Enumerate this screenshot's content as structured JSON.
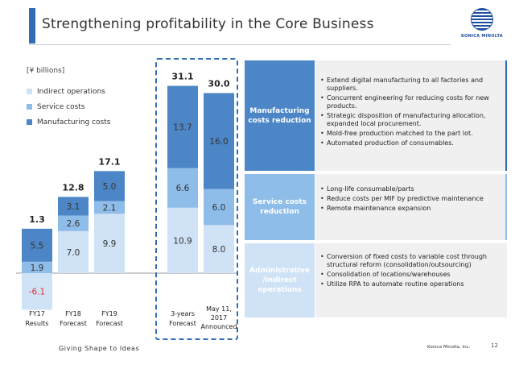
{
  "header": {
    "title": "Strengthening profitability in the Core Business",
    "logo_text": "KONICA MINOLTA"
  },
  "legend": {
    "unit": "[¥ billions]",
    "items": [
      {
        "label": "Indirect operations",
        "color": "#cfe2f6"
      },
      {
        "label": "Service costs",
        "color": "#8fbde9"
      },
      {
        "label": "Manufacturing costs",
        "color": "#4c86c6"
      }
    ]
  },
  "colors": {
    "accent": "#2f6eb5",
    "manufacturing": "#4c86c6",
    "service": "#8fbde9",
    "indirect": "#cfe2f6",
    "negative_text": "#e03030"
  },
  "chart_data": {
    "type": "bar",
    "stacked": true,
    "categories": [
      "FY17 Results",
      "FY18 Forecast",
      "FY19 Forecast",
      "3-years Forecast",
      "May 11, 2017 Announced"
    ],
    "series": [
      {
        "name": "Indirect operations",
        "values": [
          -6.1,
          7.0,
          9.9,
          10.9,
          8.0
        ]
      },
      {
        "name": "Service costs",
        "values": [
          1.9,
          2.6,
          2.1,
          6.6,
          6.0
        ]
      },
      {
        "name": "Manufacturing costs",
        "values": [
          5.5,
          3.1,
          5.0,
          13.7,
          16.0
        ]
      }
    ],
    "totals": [
      "1.3",
      "12.8",
      "17.1",
      "31.1",
      "30.0"
    ],
    "value_labels": {
      "indirect": [
        "-6.1",
        "7.0",
        "9.9",
        "10.9",
        "8.0"
      ],
      "service": [
        "1.9",
        "2.6",
        "2.1",
        "6.6",
        "6.0"
      ],
      "manufacturing": [
        "5.5",
        "3.1",
        "5.0",
        "13.7",
        "16.0"
      ]
    },
    "xlabels": [
      [
        "FY17",
        "Results"
      ],
      [
        "FY18",
        "Forecast"
      ],
      [
        "FY19",
        "Forecast"
      ],
      [
        "3-years",
        "Forecast"
      ],
      [
        "May 11,",
        "2017",
        "Announced"
      ]
    ],
    "ylim": [
      -8,
      32
    ],
    "grid": false
  },
  "initiatives": [
    {
      "category": "Manufacturing costs reduction",
      "color": "#4c86c6",
      "text_color": "#ffffff",
      "bullets": [
        "Extend digital manufacturing to all factories and suppliers.",
        "Concurrent engineering for reducing costs for new products.",
        "Strategic disposition of manufacturing allocation, expanded local procurement.",
        "Mold-free production matched to the part lot.",
        "Automated production of consumables."
      ]
    },
    {
      "category": "Service costs reduction",
      "color": "#8fbde9",
      "text_color": "#ffffff",
      "bullets": [
        "Long-life consumable/parts",
        "Reduce costs per MIF by predictive maintenance",
        "Remote maintenance expansion"
      ]
    },
    {
      "category": "Administrative /indirect operations",
      "color": "#cfe2f6",
      "text_color": "#ffffff",
      "bullets": [
        "Conversion of fixed costs to variable cost through structural reform (consolidation/outsourcing)",
        "Consolidation of locations/warehouses",
        "Utilize RPA to automate routine operations"
      ]
    }
  ],
  "footer": {
    "tagline": "Giving Shape to Ideas",
    "company": "Konica Minolta, Inc.",
    "page": "12"
  }
}
